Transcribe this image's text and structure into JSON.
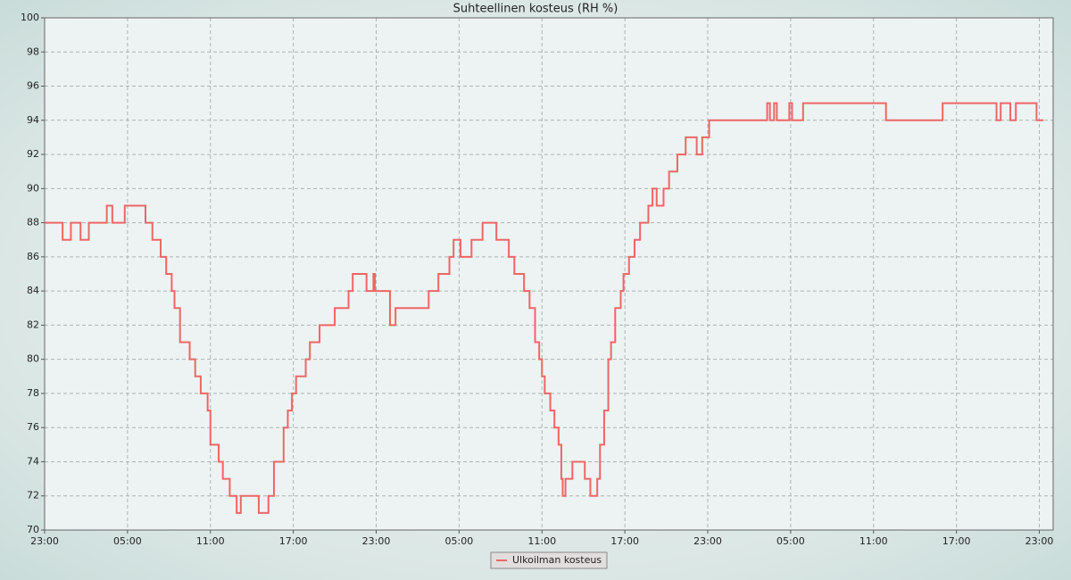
{
  "chart_data": {
    "type": "line",
    "title": "Suhteellinen kosteus (RH %)",
    "drawstyle": "steps-post",
    "x": [
      0,
      1.3,
      1.9,
      2.6,
      3.2,
      3.9,
      4.5,
      4.9,
      5.8,
      7.3,
      7.8,
      8.4,
      8.8,
      9.2,
      9.4,
      9.8,
      10.5,
      10.9,
      11.3,
      11.8,
      12.0,
      12.6,
      12.9,
      13.4,
      13.9,
      14.2,
      15.5,
      16.2,
      16.6,
      17.3,
      17.6,
      17.9,
      18.2,
      18.9,
      19.2,
      19.9,
      21.0,
      22.0,
      22.3,
      23.3,
      23.8,
      23.9,
      25.0,
      25.4,
      25.7,
      27.8,
      28.5,
      29.3,
      29.6,
      30.1,
      30.9,
      31.7,
      32.7,
      33.6,
      34.0,
      34.7,
      35.1,
      35.5,
      35.8,
      36.0,
      36.2,
      36.6,
      36.9,
      37.2,
      37.4,
      37.5,
      37.7,
      38.2,
      39.1,
      39.5,
      40.0,
      40.2,
      40.5,
      40.8,
      41.0,
      41.3,
      41.7,
      41.9,
      42.3,
      42.7,
      43.1,
      43.7,
      44.0,
      44.3,
      44.8,
      45.2,
      45.8,
      46.4,
      47.2,
      47.6,
      48.1,
      52.3,
      52.5,
      52.8,
      53.0,
      53.9,
      54.1,
      54.9,
      60.9,
      65.0,
      68.9,
      69.2,
      69.9,
      70.3,
      71.8,
      72.3
    ],
    "series": [
      {
        "name": "Ulkoilman kosteus",
        "color": "#ee6666",
        "values": [
          88,
          87,
          88,
          87,
          88,
          88,
          89,
          88,
          89,
          88,
          87,
          86,
          85,
          84,
          83,
          81,
          80,
          79,
          78,
          77,
          75,
          74,
          73,
          72,
          71,
          72,
          71,
          72,
          74,
          76,
          77,
          78,
          79,
          80,
          81,
          82,
          83,
          84,
          85,
          84,
          85,
          84,
          82,
          83,
          83,
          84,
          85,
          86,
          87,
          86,
          87,
          88,
          87,
          86,
          85,
          84,
          83,
          81,
          80,
          79,
          78,
          77,
          76,
          75,
          73,
          72,
          73,
          74,
          73,
          72,
          73,
          75,
          77,
          80,
          81,
          83,
          84,
          85,
          86,
          87,
          88,
          89,
          90,
          89,
          90,
          91,
          92,
          93,
          92,
          93,
          94,
          95,
          94,
          95,
          94,
          95,
          94,
          95,
          94,
          95,
          94,
          95,
          94,
          95,
          94,
          94
        ]
      }
    ],
    "xlim": [
      0,
      73
    ],
    "xticks": [
      {
        "value": 0,
        "label": "23:00"
      },
      {
        "value": 6,
        "label": "05:00"
      },
      {
        "value": 12,
        "label": "11:00"
      },
      {
        "value": 18,
        "label": "17:00"
      },
      {
        "value": 24,
        "label": "23:00"
      },
      {
        "value": 30,
        "label": "05:00"
      },
      {
        "value": 36,
        "label": "11:00"
      },
      {
        "value": 42,
        "label": "17:00"
      },
      {
        "value": 48,
        "label": "23:00"
      },
      {
        "value": 54,
        "label": "05:00"
      },
      {
        "value": 60,
        "label": "11:00"
      },
      {
        "value": 66,
        "label": "17:00"
      },
      {
        "value": 72,
        "label": "23:00"
      }
    ],
    "ylim": [
      70,
      100
    ],
    "yticks": [
      70,
      72,
      74,
      76,
      78,
      80,
      82,
      84,
      86,
      88,
      90,
      92,
      94,
      96,
      98,
      100
    ],
    "grid": true,
    "legend": "lower center"
  }
}
